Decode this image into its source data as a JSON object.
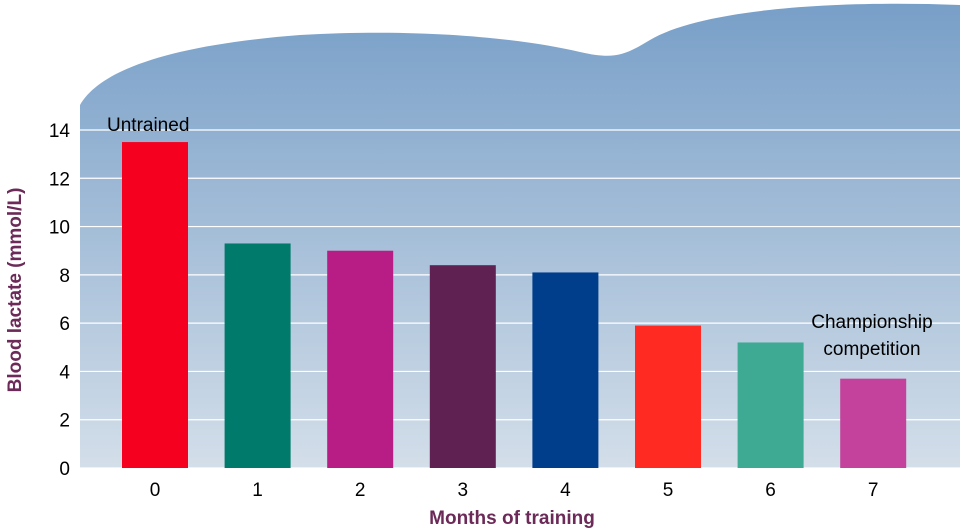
{
  "chart_data": {
    "type": "bar",
    "xlabel": "Months of training",
    "ylabel": "Blood lactate (mmol/L)",
    "categories": [
      "0",
      "1",
      "2",
      "3",
      "4",
      "5",
      "6",
      "7"
    ],
    "values": [
      13.5,
      9.3,
      9.0,
      8.4,
      8.1,
      5.9,
      5.2,
      3.7
    ],
    "ylim": [
      0,
      14
    ],
    "yticks": [
      "0",
      "2",
      "4",
      "6",
      "8",
      "10",
      "12",
      "14"
    ],
    "grid": true,
    "bar_colors": [
      "#f5001e",
      "#007a6a",
      "#b81d86",
      "#5e2152",
      "#003e8c",
      "#ff2a22",
      "#3faa93",
      "#c4429b"
    ],
    "annotations": [
      {
        "text": "Untrained",
        "category": "0"
      },
      {
        "text": "Championship",
        "category": "7"
      },
      {
        "text": "competition",
        "category": "7"
      }
    ]
  },
  "colors": {
    "background_top": "#789fc8",
    "background_bottom": "#d3dee9",
    "axis_title": "#6b2a57"
  }
}
